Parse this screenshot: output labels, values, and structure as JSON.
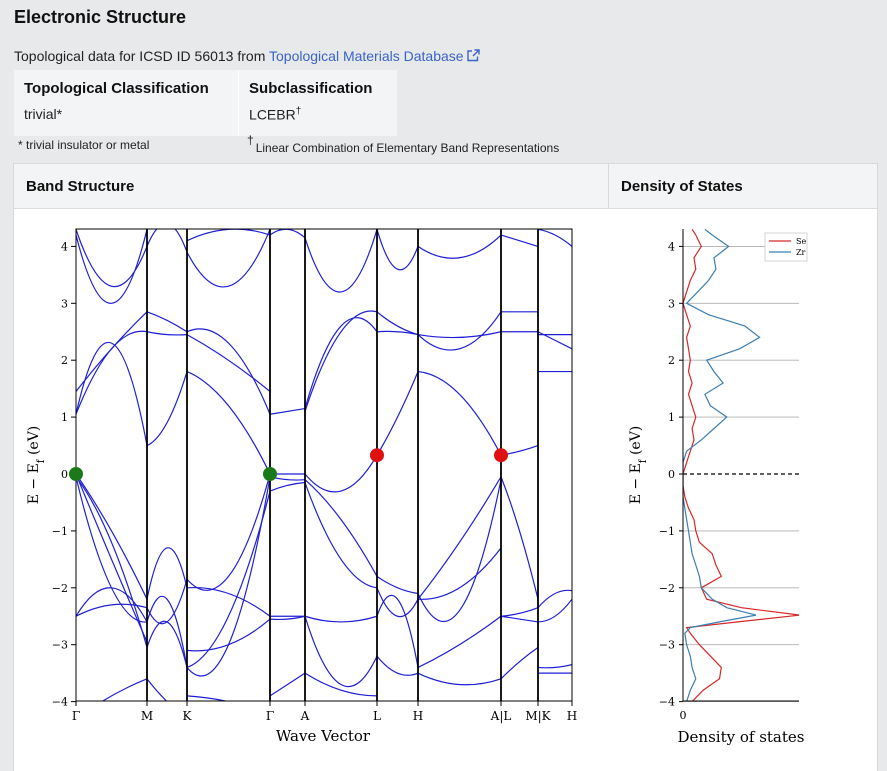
{
  "title": "Electronic Structure",
  "source": {
    "prefix": "Topological data for ICSD ID 56013 from ",
    "link_label": "Topological Materials Database",
    "icon": "external-link-icon"
  },
  "classification": {
    "col1_header": "Topological Classification",
    "col1_value": "trivial*",
    "col2_header": "Subclassification",
    "col2_value": "LCEBR",
    "col2_mark": "†"
  },
  "footnotes": {
    "trivial": "* trivial insulator or metal",
    "lcebr_mark": "†",
    "lcebr": "Linear Combination of Elementary Band Representations"
  },
  "panels": {
    "band_header": "Band Structure",
    "dos_header": "Density of States"
  },
  "colors": {
    "band_line": "#1f1fd6",
    "dos_se": "#d62728",
    "dos_zr": "#3c7fb1",
    "gamma_marker": "#1a7a1a",
    "l_marker": "#e01010"
  },
  "chart_data": [
    {
      "type": "line",
      "xlabel": "Wave Vector",
      "ylabel": "E − E_f (eV)",
      "ylim": [
        -4,
        4.3
      ],
      "yticks": [
        "−4",
        "−3",
        "−2",
        "−1",
        "0",
        "1",
        "2",
        "3",
        "4"
      ],
      "kpath_labels": [
        "Γ",
        "M",
        "K",
        "Γ",
        "A",
        "L",
        "H",
        "A|L",
        "M|K",
        "H"
      ],
      "markers": [
        {
          "k": "Γ",
          "energy": 0.0,
          "color": "green"
        },
        {
          "k": "Γ",
          "energy": 0.0,
          "color": "green"
        },
        {
          "k": "L",
          "energy": 0.33,
          "color": "red"
        },
        {
          "k": "A|L",
          "energy": 0.33,
          "color": "red"
        }
      ],
      "bands_at_high_symmetry_points": {
        "Γ": [
          0.0,
          1.05,
          1.45,
          -2.5,
          4.2
        ],
        "M": [
          0.5,
          2.85,
          -2.6,
          -3.0,
          -2.35
        ],
        "K": [
          1.8,
          2.5,
          -3.4,
          -1.85,
          3.9
        ],
        "L": [
          0.33,
          2.5,
          -0.9,
          -2.5,
          -3.2
        ],
        "A|L": [
          0.33,
          2.85,
          2.5,
          -2.5,
          -3.6
        ]
      },
      "grid": false
    },
    {
      "type": "line",
      "xlabel": "Density of states",
      "ylabel": "E − E_f (eV)",
      "ylim": [
        -4,
        4.3
      ],
      "yticks": [
        "−4",
        "−3",
        "−2",
        "−1",
        "0",
        "1",
        "2",
        "3",
        "4"
      ],
      "xticks": [
        "0"
      ],
      "legend_position": "top-right",
      "fermi_line": 0,
      "grid": true,
      "series": [
        {
          "name": "Se",
          "energy": [
            -4.0,
            -3.8,
            -3.6,
            -3.4,
            -3.2,
            -3.0,
            -2.8,
            -2.7,
            -2.6,
            -2.48,
            -2.35,
            -2.2,
            -2.0,
            -1.8,
            -1.6,
            -1.4,
            -1.2,
            -1.0,
            -0.8,
            -0.6,
            -0.4,
            -0.2,
            0.0,
            0.2,
            0.4,
            0.6,
            0.8,
            1.0,
            1.2,
            1.4,
            1.6,
            1.8,
            2.0,
            2.2,
            2.4,
            2.6,
            2.8,
            3.0,
            3.2,
            3.4,
            3.6,
            3.8,
            4.0,
            4.2,
            4.3
          ],
          "density": [
            0.25,
            0.55,
            1.0,
            1.05,
            0.75,
            0.45,
            0.2,
            0.1,
            1.5,
            3.2,
            1.6,
            0.65,
            0.5,
            1.05,
            0.9,
            0.8,
            0.45,
            0.35,
            0.3,
            0.15,
            0.05,
            0.0,
            0.0,
            0.1,
            0.2,
            0.3,
            0.25,
            0.35,
            0.25,
            0.15,
            0.25,
            0.15,
            0.2,
            0.15,
            0.1,
            0.2,
            0.1,
            0.0,
            0.1,
            0.2,
            0.35,
            0.3,
            0.5,
            0.35,
            0.25
          ]
        },
        {
          "name": "Zr",
          "energy": [
            -4.0,
            -3.8,
            -3.6,
            -3.4,
            -3.2,
            -3.0,
            -2.8,
            -2.7,
            -2.6,
            -2.48,
            -2.35,
            -2.2,
            -2.0,
            -1.8,
            -1.6,
            -1.4,
            -1.2,
            -1.0,
            -0.8,
            -0.6,
            -0.4,
            -0.2,
            0.0,
            0.2,
            0.4,
            0.6,
            0.8,
            1.0,
            1.2,
            1.4,
            1.6,
            1.8,
            2.0,
            2.2,
            2.4,
            2.6,
            2.8,
            3.0,
            3.2,
            3.4,
            3.6,
            3.8,
            4.0,
            4.2,
            4.3
          ],
          "density": [
            0.1,
            0.2,
            0.35,
            0.25,
            0.2,
            0.1,
            0.05,
            0.2,
            1.0,
            2.0,
            1.2,
            0.8,
            0.5,
            0.45,
            0.35,
            0.25,
            0.2,
            0.15,
            0.1,
            0.05,
            0.0,
            0.0,
            0.0,
            0.0,
            0.1,
            0.5,
            0.85,
            1.2,
            0.75,
            0.6,
            1.1,
            0.85,
            0.65,
            1.55,
            2.1,
            1.7,
            0.7,
            0.1,
            0.4,
            0.7,
            0.9,
            0.85,
            1.25,
            0.8,
            0.6
          ]
        }
      ]
    }
  ]
}
